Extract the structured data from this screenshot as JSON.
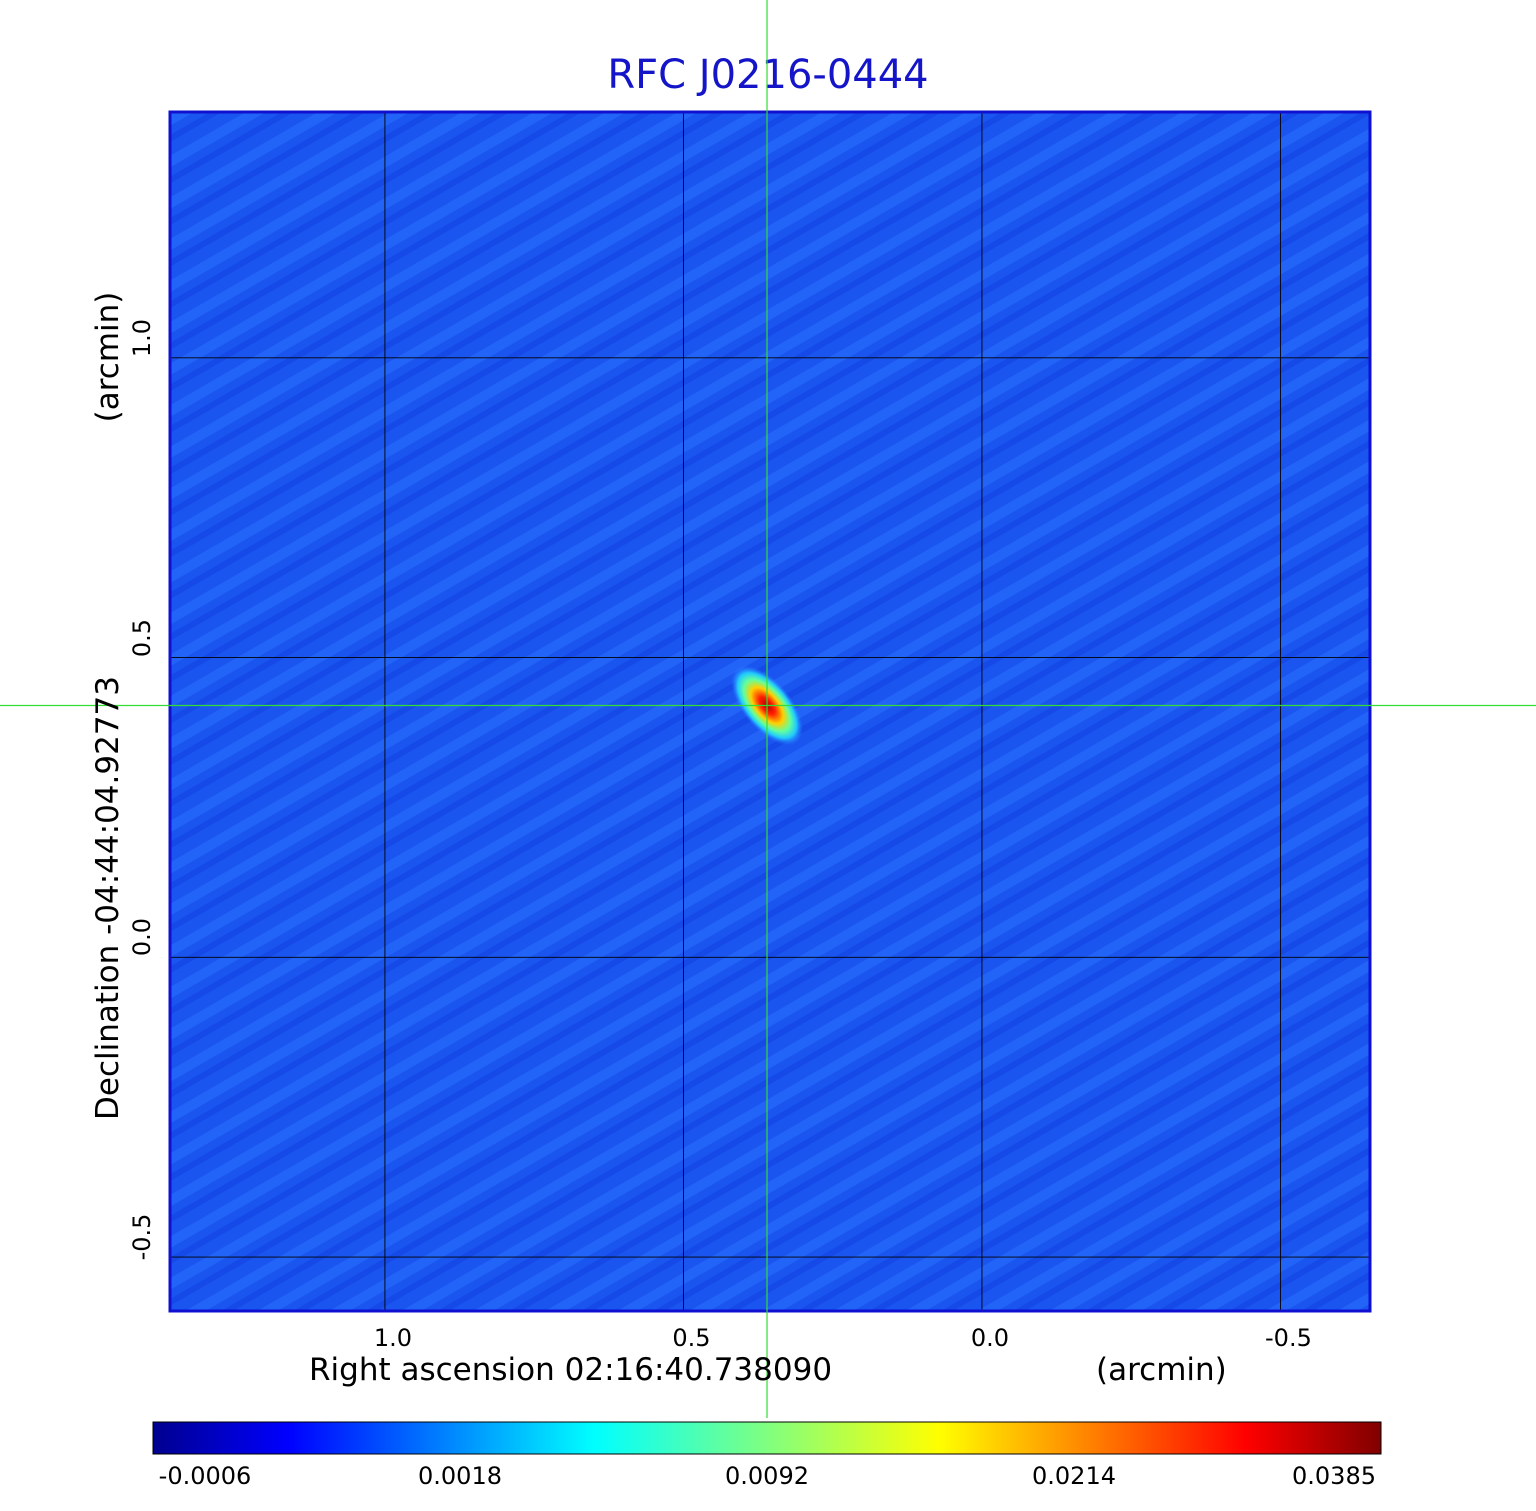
{
  "chart_data": {
    "type": "heatmap",
    "title": "RFC J0216-0444",
    "xlabel": "Right ascension  02:16:40.738090",
    "xunit": "(arcmin)",
    "ylabel": "Declination  -04:44:04.92773",
    "yunit": "(arcmin)",
    "xlim": [
      1.36,
      -0.65
    ],
    "ylim": [
      -0.59,
      1.41
    ],
    "x_ticks": [
      "1.0",
      "0.5",
      "0.0",
      "-0.5"
    ],
    "x_tick_values": [
      1.0,
      0.5,
      0.0,
      -0.5
    ],
    "y_ticks": [
      "-0.5",
      "0.0",
      "0.5",
      "1.0"
    ],
    "y_tick_values": [
      -0.5,
      0.0,
      0.5,
      1.0
    ],
    "grid": true,
    "colormap": "jet",
    "colorbar_ticks": [
      "-0.0006",
      "0.0018",
      "0.0092",
      "0.0214",
      "0.0385"
    ],
    "source_peak": {
      "x": 0.36,
      "y": 0.42,
      "value": 0.0385
    },
    "crosshair": {
      "x": 0.36,
      "y": 0.42,
      "color": "#33dd33"
    },
    "background_value": 0.0
  }
}
